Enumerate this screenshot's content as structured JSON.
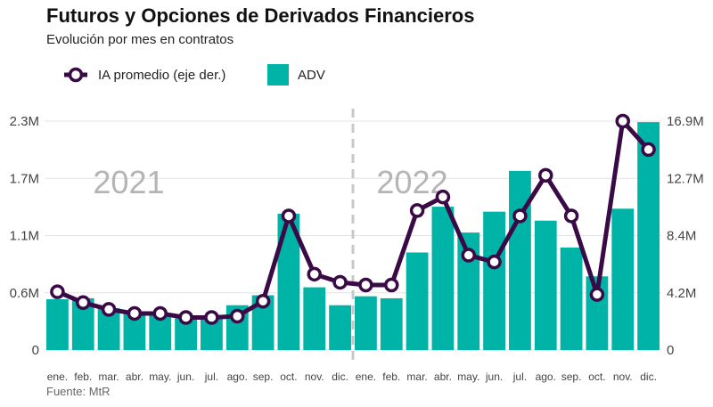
{
  "header": {
    "title": "Futuros y Opciones de Derivados Financieros",
    "subtitle": "Evolución por mes en contratos"
  },
  "legend": {
    "line_label": "IA promedio (eje der.)",
    "bar_label": "ADV"
  },
  "source": "Fuente: MtR",
  "colors": {
    "bar": "#00b3a7",
    "line": "#3a0a47",
    "grid": "#e3e3e3",
    "divider": "#c8c8c8",
    "year_label": "#b5b5b5"
  },
  "chart_data": {
    "type": "bar",
    "title": "Futuros y Opciones de Derivados Financieros",
    "subtitle": "Evolución por mes en contratos",
    "categories": [
      "ene.",
      "feb.",
      "mar.",
      "abr.",
      "may.",
      "jun.",
      "jul.",
      "ago.",
      "sep.",
      "oct.",
      "nov.",
      "dic.",
      "ene.",
      "feb.",
      "mar.",
      "abr.",
      "may.",
      "jun.",
      "jul.",
      "ago.",
      "sep.",
      "oct.",
      "nov.",
      "dic."
    ],
    "year_labels": [
      "2021",
      "2022"
    ],
    "left_ticks": [
      "0",
      "0.6M",
      "1.1M",
      "1.7M",
      "2.3M"
    ],
    "right_ticks": [
      "0",
      "4.2M",
      "8.4M",
      "12.7M",
      "16.9M"
    ],
    "ylim_left": [
      0,
      2300000
    ],
    "ylim_right": [
      0,
      16900000
    ],
    "grid": true,
    "legend_position": "top-left",
    "series": [
      {
        "name": "ADV",
        "type": "bar",
        "axis": "left",
        "values": [
          510000,
          520000,
          420000,
          380000,
          370000,
          320000,
          320000,
          450000,
          550000,
          1370000,
          630000,
          450000,
          540000,
          520000,
          980000,
          1440000,
          1180000,
          1390000,
          1800000,
          1300000,
          1030000,
          740000,
          1420000,
          2290000
        ]
      },
      {
        "name": "IA promedio (eje der.)",
        "type": "line",
        "axis": "right",
        "values": [
          4300000,
          3500000,
          3000000,
          2700000,
          2700000,
          2400000,
          2400000,
          2500000,
          3600000,
          9900000,
          5600000,
          5000000,
          4800000,
          4800000,
          10300000,
          11300000,
          7000000,
          6500000,
          9900000,
          12900000,
          9900000,
          4100000,
          16900000,
          14800000
        ]
      }
    ]
  }
}
